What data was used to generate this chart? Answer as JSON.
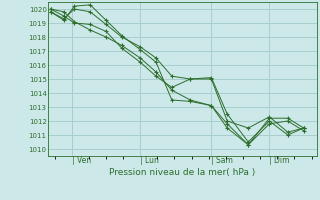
{
  "bg_color": "#cce8e8",
  "grid_color": "#a8cece",
  "line_color": "#2d6e2d",
  "marker_color": "#2d6e2d",
  "xlabel": "Pression niveau de la mer( hPa )",
  "ylim": [
    1009.5,
    1020.5
  ],
  "yticks": [
    1010,
    1011,
    1012,
    1013,
    1014,
    1015,
    1016,
    1017,
    1018,
    1019,
    1020
  ],
  "xtick_labels": [
    "| Ven",
    "| Lun",
    "| Sam",
    "| Dim"
  ],
  "xtick_positions": [
    0.09,
    0.35,
    0.62,
    0.84
  ],
  "xlim": [
    0.0,
    1.02
  ],
  "series": [
    {
      "x": [
        0.01,
        0.06,
        0.1,
        0.16,
        0.22,
        0.28,
        0.35,
        0.41,
        0.47,
        0.54,
        0.62,
        0.68,
        0.76,
        0.84,
        0.91,
        0.97
      ],
      "y": [
        1020.0,
        1019.8,
        1019.1,
        1018.5,
        1018.0,
        1017.4,
        1016.5,
        1015.5,
        1014.2,
        1013.5,
        1013.1,
        1011.8,
        1010.3,
        1012.2,
        1012.2,
        1011.5
      ]
    },
    {
      "x": [
        0.01,
        0.06,
        0.1,
        0.16,
        0.22,
        0.28,
        0.35,
        0.41,
        0.47,
        0.54,
        0.62,
        0.68,
        0.76,
        0.84,
        0.91,
        0.97
      ],
      "y": [
        1020.0,
        1019.5,
        1019.0,
        1018.9,
        1018.4,
        1017.2,
        1016.2,
        1015.2,
        1014.4,
        1015.0,
        1015.0,
        1012.0,
        1011.5,
        1012.3,
        1011.2,
        1011.5
      ]
    },
    {
      "x": [
        0.01,
        0.06,
        0.1,
        0.16,
        0.22,
        0.28,
        0.35,
        0.41,
        0.47,
        0.54,
        0.62,
        0.68,
        0.76,
        0.84,
        0.91,
        0.97
      ],
      "y": [
        1019.8,
        1019.2,
        1020.2,
        1020.3,
        1019.2,
        1018.1,
        1017.1,
        1016.2,
        1013.5,
        1013.4,
        1013.1,
        1011.5,
        1010.3,
        1011.8,
        1012.0,
        1011.3
      ]
    },
    {
      "x": [
        0.01,
        0.06,
        0.1,
        0.16,
        0.22,
        0.28,
        0.35,
        0.41,
        0.47,
        0.54,
        0.62,
        0.68,
        0.76,
        0.84,
        0.91,
        0.97
      ],
      "y": [
        1019.8,
        1019.3,
        1020.0,
        1019.8,
        1018.9,
        1018.0,
        1017.3,
        1016.5,
        1015.2,
        1015.0,
        1015.1,
        1012.5,
        1010.5,
        1012.0,
        1011.0,
        1011.5
      ]
    }
  ]
}
